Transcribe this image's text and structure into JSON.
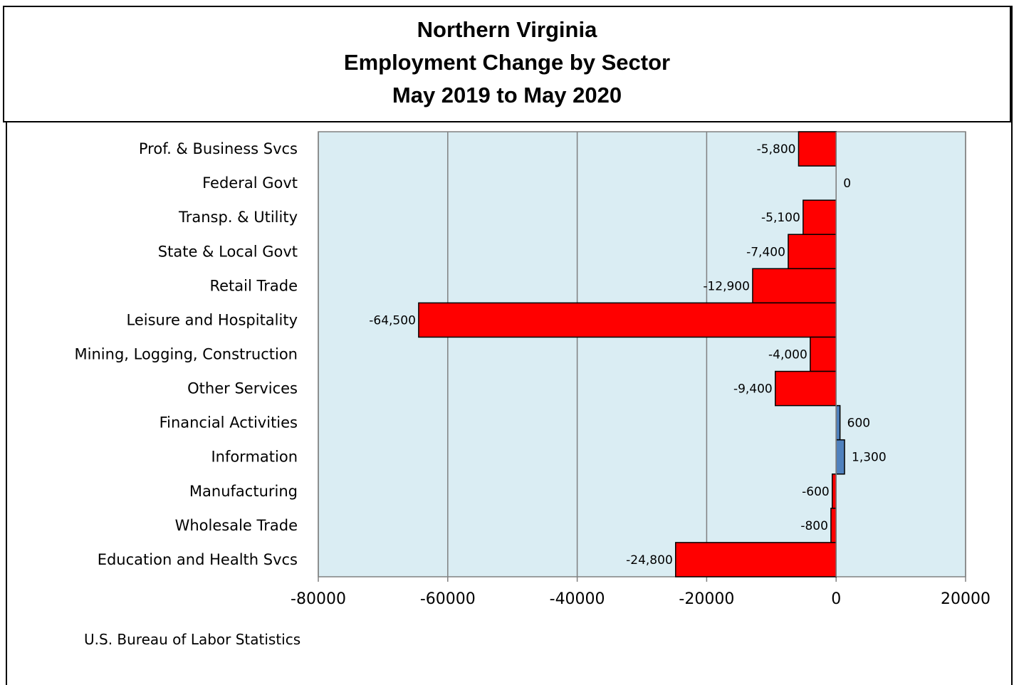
{
  "title_lines": [
    "Northern Virginia",
    "Employment Change by Sector",
    "May 2019 to May 2020"
  ],
  "source": "U.S. Bureau of Labor Statistics",
  "colors": {
    "plot_bg": "#daedf3",
    "negative": "#ff0000",
    "positive": "#4f81bd",
    "grid": "#808080",
    "border": "#000000"
  },
  "chart_data": {
    "type": "bar",
    "orientation": "horizontal",
    "categories": [
      "Prof. & Business Svcs",
      "Federal Govt",
      "Transp. & Utility",
      "State & Local Govt",
      "Retail Trade",
      "Leisure and Hospitality",
      "Mining, Logging, Construction",
      "Other Services",
      "Financial Activities",
      "Information",
      "Manufacturing",
      "Wholesale Trade",
      "Education and Health Svcs"
    ],
    "values": [
      -5800,
      0,
      -5100,
      -7400,
      -12900,
      -64500,
      -4000,
      -9400,
      600,
      1300,
      -600,
      -800,
      -24800
    ],
    "data_labels": [
      "-5,800",
      "0",
      "-5,100",
      "-7,400",
      "-12,900",
      "-64,500",
      "-4,000",
      "-9,400",
      "600",
      "1,300",
      "-600",
      "-800",
      "-24,800"
    ],
    "x_ticks": [
      "-80000",
      "-60000",
      "-40000",
      "-20000",
      "0",
      "20000"
    ],
    "xlim": [
      -80000,
      20000
    ],
    "grid": true,
    "legend": "none"
  }
}
